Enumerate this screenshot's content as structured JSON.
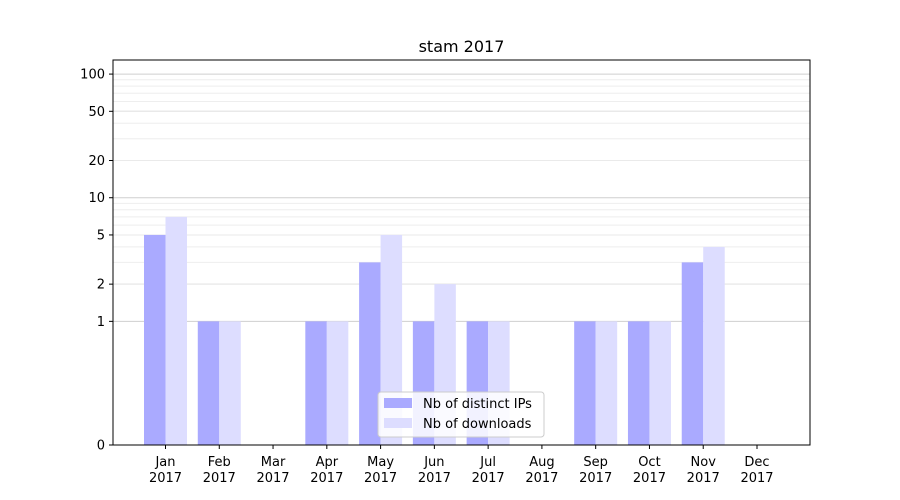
{
  "chart_data": {
    "type": "bar",
    "title": "stam 2017",
    "xlabel": "",
    "ylabel": "",
    "y_scale": "symlog",
    "ylim": [
      0,
      130
    ],
    "y_ticks": [
      0,
      1,
      2,
      5,
      10,
      20,
      50,
      100
    ],
    "categories": [
      [
        "Jan",
        "2017"
      ],
      [
        "Feb",
        "2017"
      ],
      [
        "Mar",
        "2017"
      ],
      [
        "Apr",
        "2017"
      ],
      [
        "May",
        "2017"
      ],
      [
        "Jun",
        "2017"
      ],
      [
        "Jul",
        "2017"
      ],
      [
        "Aug",
        "2017"
      ],
      [
        "Sep",
        "2017"
      ],
      [
        "Oct",
        "2017"
      ],
      [
        "Nov",
        "2017"
      ],
      [
        "Dec",
        "2017"
      ]
    ],
    "series": [
      {
        "name": "Nb of distinct IPs",
        "color": "#aaaaff",
        "values": [
          5,
          1,
          0,
          1,
          3,
          1,
          1,
          0,
          1,
          1,
          3,
          0
        ]
      },
      {
        "name": "Nb of downloads",
        "color": "#ddddff",
        "values": [
          7,
          1,
          0,
          1,
          5,
          2,
          1,
          0,
          1,
          1,
          4,
          0
        ]
      }
    ],
    "grid": true,
    "legend_position": "lower center"
  }
}
